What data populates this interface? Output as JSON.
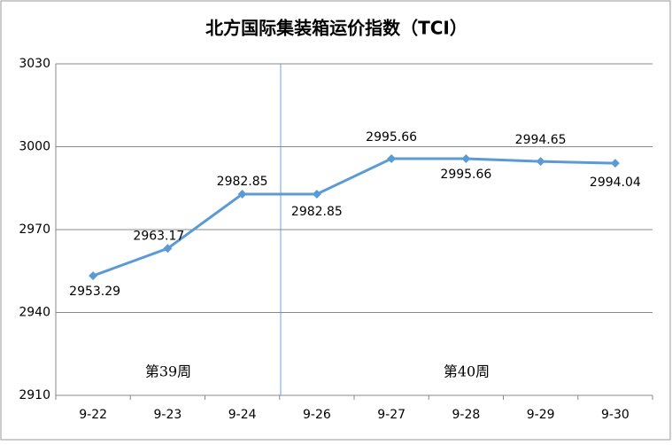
{
  "chart_data": {
    "type": "line",
    "title": "北方国际集装箱运价指数（TCI）",
    "categories": [
      "9-22",
      "9-23",
      "9-24",
      "9-26",
      "9-27",
      "9-28",
      "9-29",
      "9-30"
    ],
    "series": [
      {
        "name": "TCI",
        "color": "#5b9bd5",
        "values": [
          2953.29,
          2963.17,
          2982.85,
          2982.85,
          2995.66,
          2995.66,
          2994.65,
          2994.04
        ]
      }
    ],
    "ylim": [
      2910,
      3030
    ],
    "yticks": [
      2910,
      2940,
      2970,
      3000,
      3030
    ],
    "grid": true,
    "annotations": [
      "第39周",
      "第40周"
    ]
  }
}
